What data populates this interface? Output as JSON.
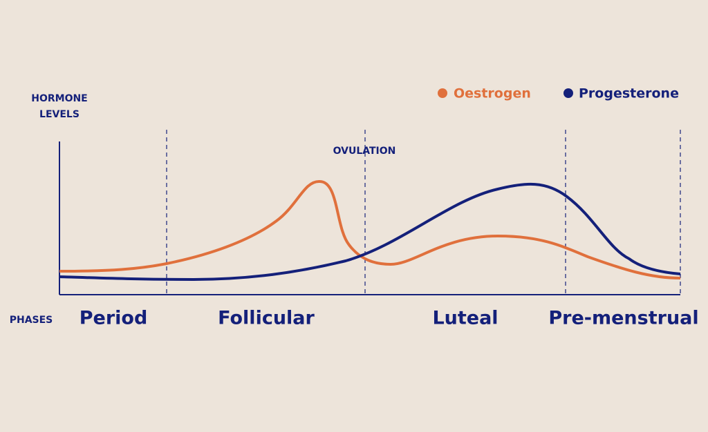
{
  "y_axis": {
    "label_lines": [
      "HORMONE",
      "LEVELS"
    ]
  },
  "legend": [
    {
      "name": "Oestrogen",
      "color": "#e0703c"
    },
    {
      "name": "Progesterone",
      "color": "#14207a"
    }
  ],
  "marker": {
    "label": "OVULATION"
  },
  "phases": {
    "label": "PHASES",
    "names": [
      "Period",
      "Follicular",
      "Luteal",
      "Pre-menstrual"
    ]
  }
}
